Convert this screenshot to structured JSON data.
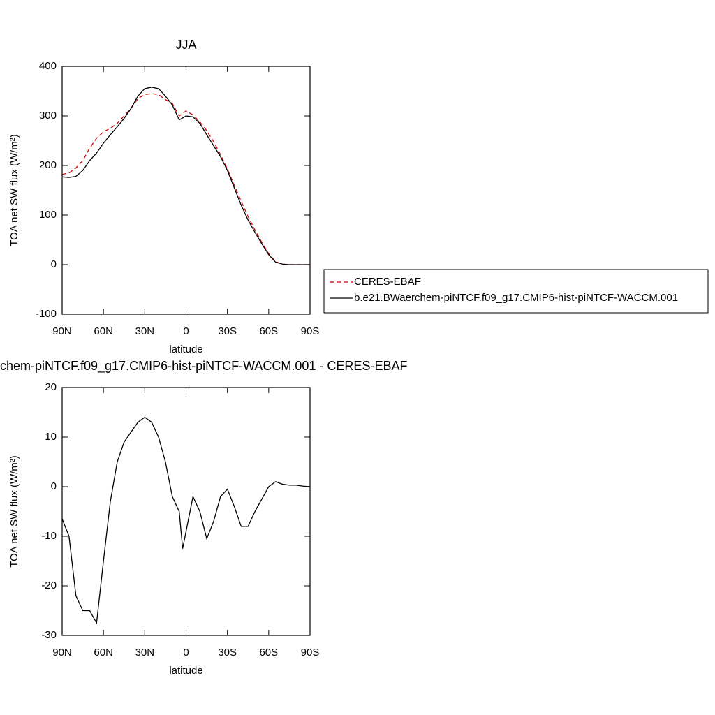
{
  "chart_data": [
    {
      "type": "line",
      "title": "JJA",
      "xlabel": "latitude",
      "ylabel": "TOA net SW flux (W/m²)",
      "x": [
        90,
        85,
        80,
        75,
        70,
        65,
        60,
        55,
        50,
        45,
        40,
        35,
        30,
        25,
        20,
        15,
        10,
        5,
        0,
        -5,
        -10,
        -15,
        -20,
        -25,
        -30,
        -35,
        -40,
        -45,
        -50,
        -55,
        -60,
        -65,
        -70,
        -75,
        -80,
        -85,
        -90
      ],
      "xlim": [
        90,
        -90
      ],
      "xticks": [
        {
          "value": 90,
          "label": "90N"
        },
        {
          "value": 60,
          "label": "60N"
        },
        {
          "value": 30,
          "label": "30N"
        },
        0,
        {
          "value": -30,
          "label": "30S"
        },
        {
          "value": -60,
          "label": "60S"
        },
        {
          "value": -90,
          "label": "90S"
        }
      ],
      "ylim": [
        -100,
        400
      ],
      "yticks": [
        -100,
        0,
        100,
        200,
        300,
        400
      ],
      "legend": "right",
      "series": [
        {
          "name": "CERES-EBAF",
          "color": "#cc0000",
          "dash": true,
          "values": [
            182,
            185,
            195,
            210,
            235,
            255,
            268,
            275,
            285,
            300,
            315,
            335,
            343,
            345,
            343,
            333,
            325,
            300,
            310,
            302,
            288,
            270,
            248,
            222,
            193,
            160,
            128,
            97,
            70,
            45,
            22,
            6,
            1,
            0,
            0,
            0,
            0
          ]
        },
        {
          "name": "b.e21.BWaerchem-piNTCF.f09_g17.CMIP6-hist-piNTCF-WACCM.001",
          "color": "#000000",
          "dash": false,
          "values": [
            177,
            176,
            178,
            190,
            210,
            225,
            245,
            262,
            278,
            295,
            315,
            340,
            355,
            358,
            355,
            340,
            322,
            292,
            300,
            298,
            285,
            262,
            240,
            218,
            190,
            155,
            120,
            90,
            65,
            42,
            20,
            5,
            1,
            0,
            0,
            0,
            0
          ]
        }
      ]
    },
    {
      "type": "line",
      "title": "chem-piNTCF.f09_g17.CMIP6-hist-piNTCF-WACCM.001 - CERES-EBAF",
      "xlabel": "latitude",
      "ylabel": "TOA net SW flux (W/m²)",
      "x": [
        90,
        85,
        80,
        75,
        70,
        65,
        60,
        55,
        50,
        45,
        40,
        35,
        30,
        25,
        20,
        15,
        10,
        5,
        2.5,
        0,
        -5,
        -10,
        -15,
        -20,
        -25,
        -30,
        -35,
        -40,
        -45,
        -50,
        -55,
        -60,
        -65,
        -70,
        -75,
        -80,
        -85,
        -90
      ],
      "xlim": [
        90,
        -90
      ],
      "xticks": [
        {
          "value": 90,
          "label": "90N"
        },
        {
          "value": 60,
          "label": "60N"
        },
        {
          "value": 30,
          "label": "30N"
        },
        0,
        {
          "value": -30,
          "label": "30S"
        },
        {
          "value": -60,
          "label": "60S"
        },
        {
          "value": -90,
          "label": "90S"
        }
      ],
      "ylim": [
        -30,
        20
      ],
      "yticks": [
        -30,
        -20,
        -10,
        0,
        10,
        20
      ],
      "series": [
        {
          "color": "#000000",
          "dash": false,
          "values": [
            -6.5,
            -10,
            -22,
            -25,
            -25,
            -27.5,
            -15,
            -3,
            5,
            9,
            11,
            13,
            14,
            13,
            10,
            5,
            -2,
            -5,
            -12.5,
            -9,
            -2,
            -5,
            -10.5,
            -7,
            -2,
            -0.5,
            -4,
            -8,
            -8,
            -5,
            -2.5,
            0,
            1,
            0.5,
            0.3,
            0.3,
            0.1,
            0
          ]
        }
      ]
    }
  ]
}
